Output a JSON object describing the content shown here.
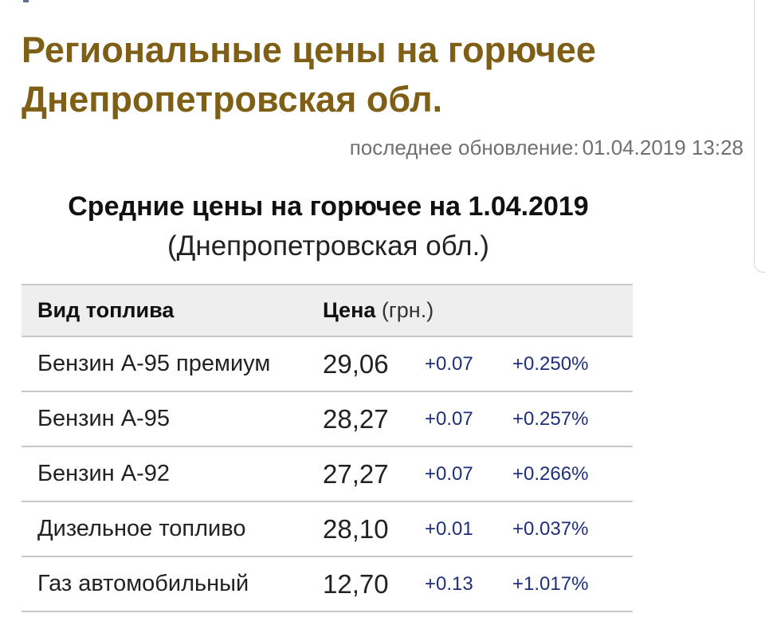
{
  "page": {
    "title_line1": "Региональные цены на горючее",
    "title_line2": "Днепропетровская обл.",
    "updated_label": "последнее обновление:",
    "updated_value": "01.04.2019 13:28"
  },
  "section": {
    "title": "Средние цены на горючее на 1.04.2019",
    "region": "(Днепропетровская обл.)"
  },
  "table": {
    "headers": {
      "fuel": "Вид топлива",
      "price": "Цена",
      "price_unit": "(грн.)"
    },
    "rows": [
      {
        "fuel": "Бензин А-95 премиум",
        "price": "29,06",
        "change": "+0.07",
        "change_pct": "+0.250%"
      },
      {
        "fuel": "Бензин А-95",
        "price": "28,27",
        "change": "+0.07",
        "change_pct": "+0.257%"
      },
      {
        "fuel": "Бензин А-92",
        "price": "27,27",
        "change": "+0.07",
        "change_pct": "+0.266%"
      },
      {
        "fuel": "Дизельное топливо",
        "price": "28,10",
        "change": "+0.01",
        "change_pct": "+0.037%"
      },
      {
        "fuel": "Газ автомобильный",
        "price": "12,70",
        "change": "+0.13",
        "change_pct": "+1.017%"
      }
    ]
  },
  "colors": {
    "title": "#7f5f15",
    "change": "#1f2f7a",
    "muted": "#707070"
  }
}
